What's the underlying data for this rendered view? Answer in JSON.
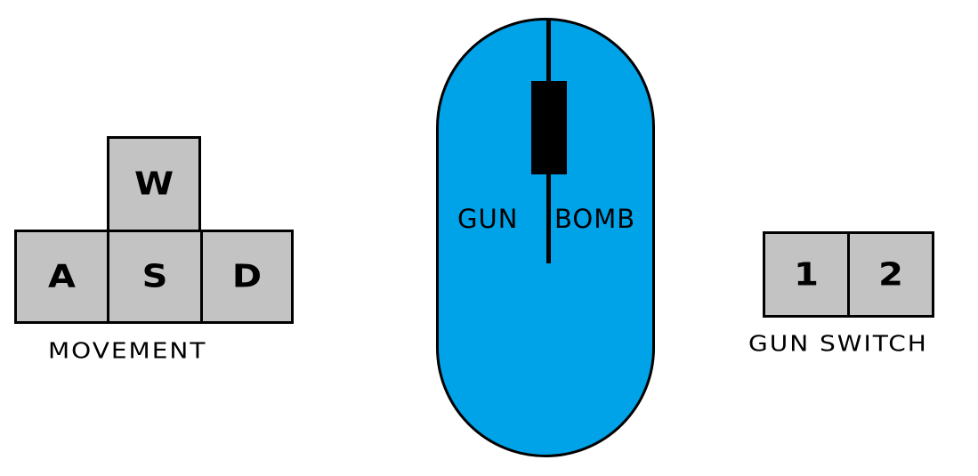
{
  "movement": {
    "keys": {
      "w": "W",
      "a": "A",
      "s": "S",
      "d": "D"
    },
    "caption": "MOVEMENT"
  },
  "mouse": {
    "left_button": "GUN",
    "right_button": "BOMB",
    "body_color": "#00a2e8"
  },
  "gun_switch": {
    "keys": [
      "1",
      "2"
    ],
    "caption": "GUN SWITCH"
  },
  "colors": {
    "key_fill": "#c3c3c3",
    "outline": "#000000"
  }
}
